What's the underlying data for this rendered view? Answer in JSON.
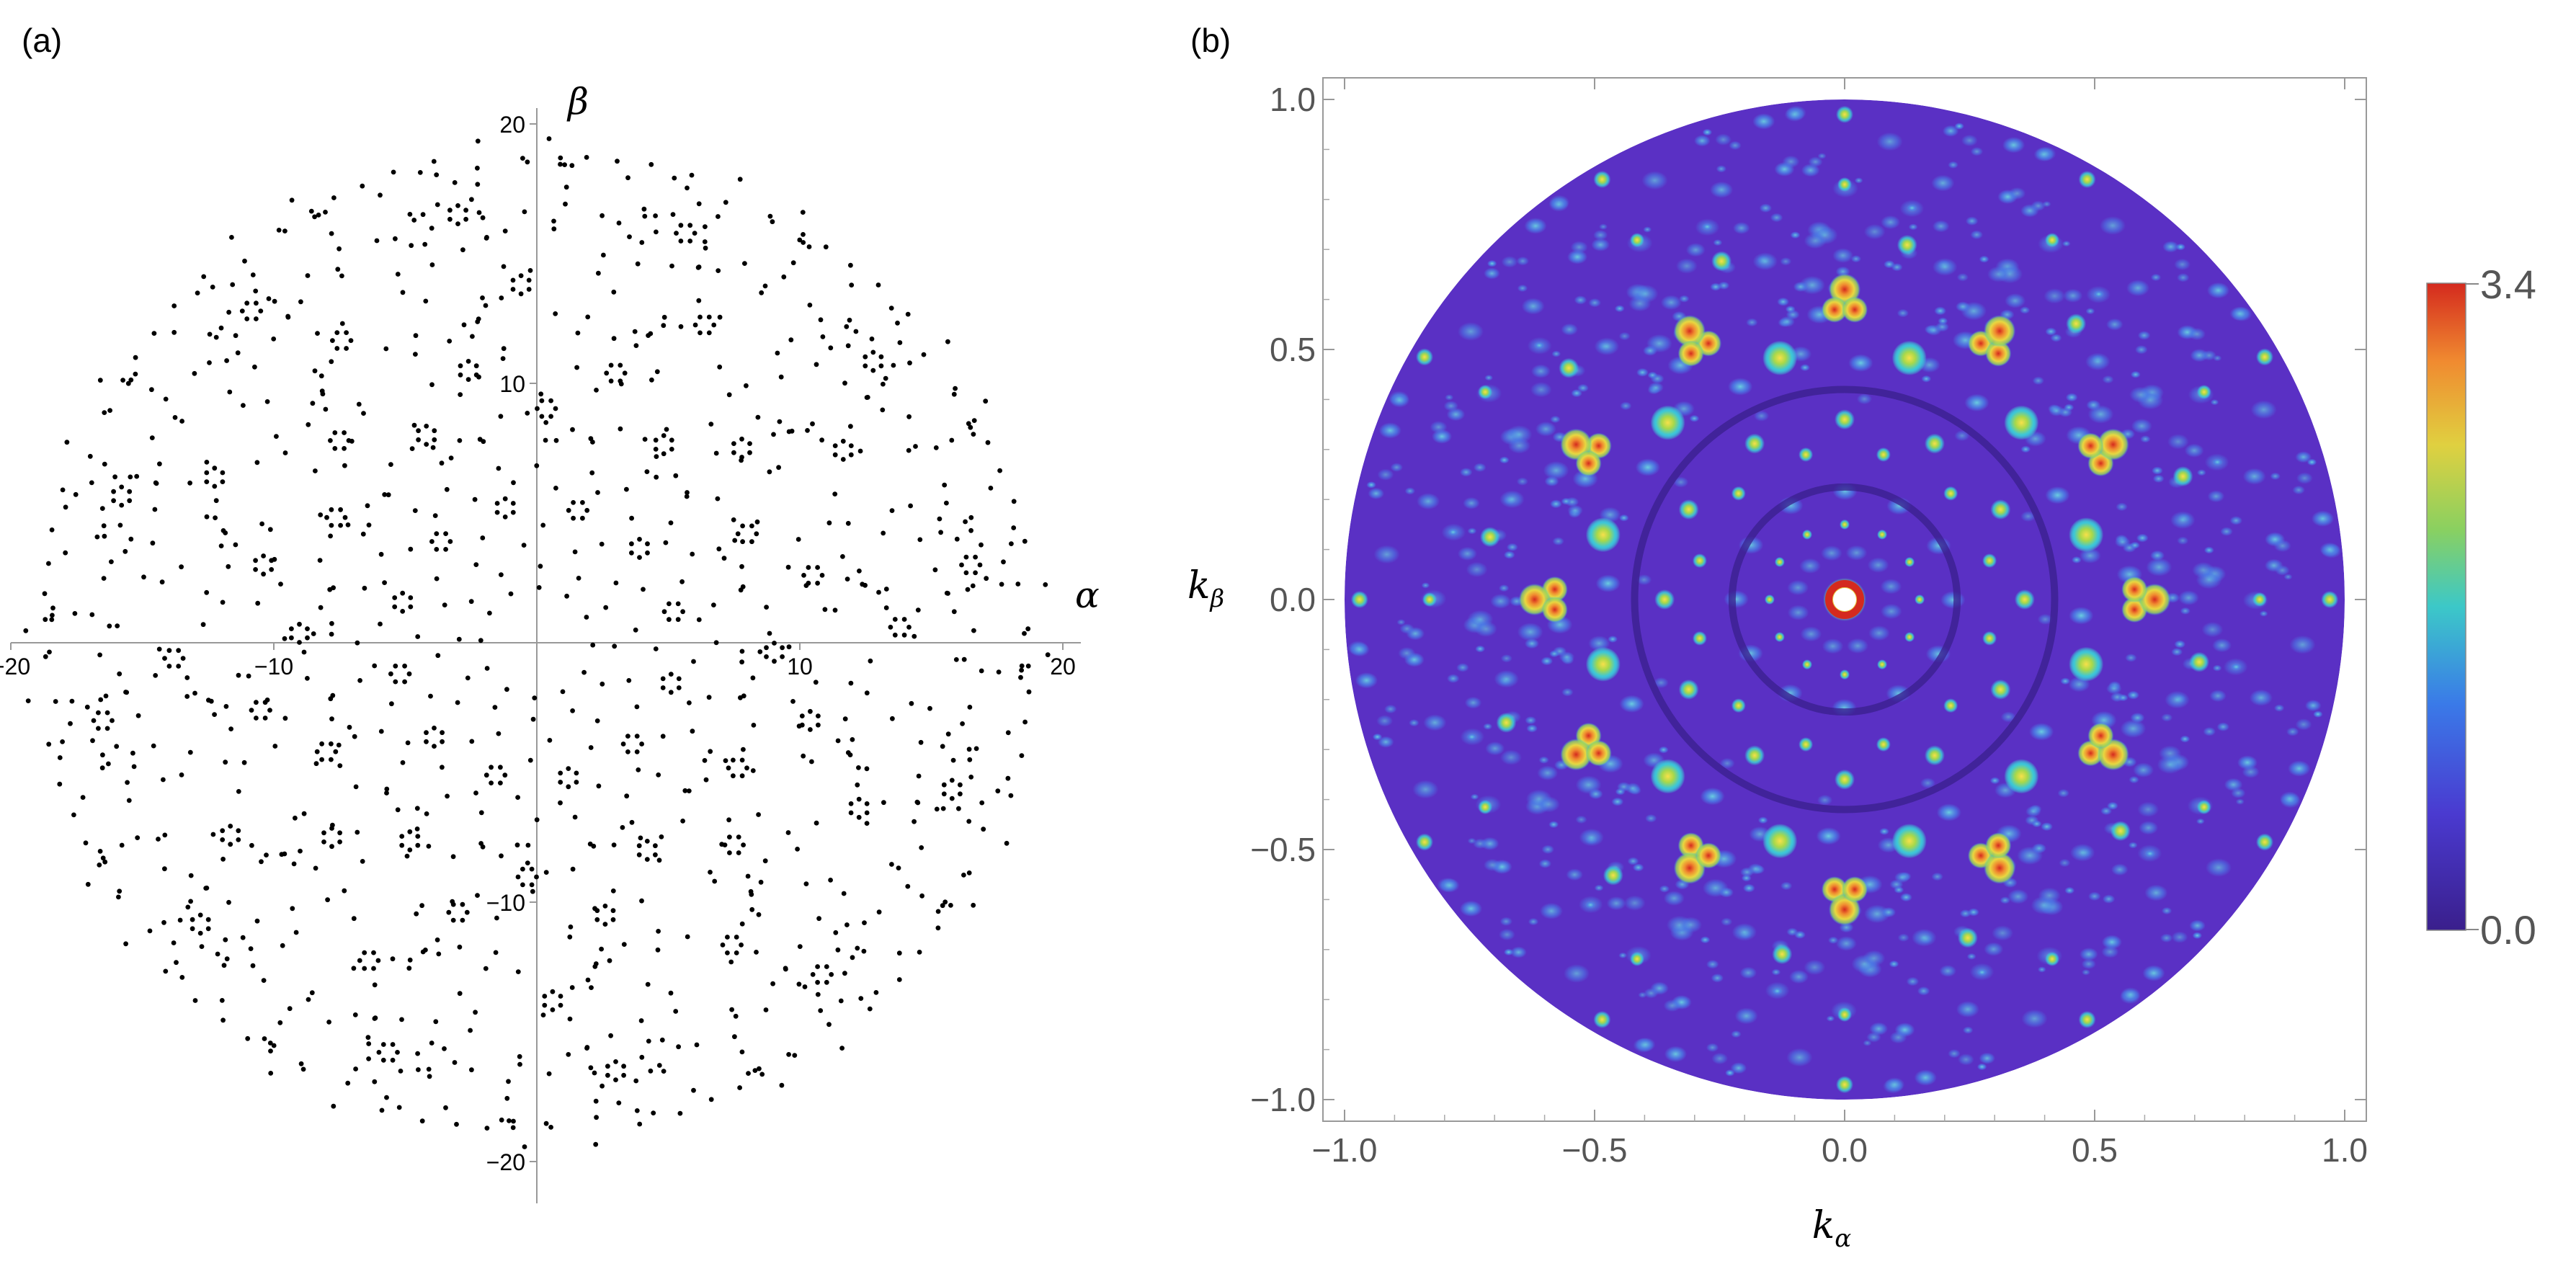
{
  "panel_a": {
    "label": "(a)",
    "x_axis_name": "α",
    "y_axis_name": "β",
    "x_tick_labels": [
      "−20",
      "−10",
      "10",
      "20"
    ],
    "y_tick_labels": [
      "20",
      "10",
      "−10",
      "−20"
    ]
  },
  "panel_b": {
    "label": "(b)",
    "x_axis_name": "k",
    "x_axis_sub": "α",
    "y_axis_name": "k",
    "y_axis_sub": "β",
    "x_tick_labels": [
      "−1.0",
      "−0.5",
      "0.0",
      "0.5",
      "1.0"
    ],
    "y_tick_labels": [
      "1.0",
      "0.5",
      "0.0",
      "−0.5",
      "−1.0"
    ],
    "colorbar_max_label": "3.4",
    "colorbar_min_label": "0.0"
  },
  "colors": {
    "background_purple": "#5a2fc0",
    "dark_purple": "#3a1f8c",
    "cyan": "#3cc8d8",
    "green_yellow": "#b8d84a",
    "orange": "#f08a30",
    "red": "#d42a1e",
    "axis_gray": "#888888"
  },
  "chart_data": [
    {
      "type": "scatter",
      "panel": "a",
      "description_free": true,
      "xlabel": "α",
      "ylabel": "β",
      "xlim": [
        -20,
        20
      ],
      "ylim": [
        -21,
        20
      ],
      "symmetry": "12-fold rotational (quasicrystal point set)",
      "point_radius_extent": 19.5,
      "series": [
        {
          "values": []
        }
      ]
    },
    {
      "type": "heatmap",
      "panel": "b",
      "xlabel": "kα",
      "ylabel": "kβ",
      "xlim": [
        -1.0,
        1.0
      ],
      "ylim": [
        -1.0,
        1.0
      ],
      "domain": "disk of radius 1.0",
      "symmetry": "12-fold rotational",
      "colorbar": {
        "min": 0.0,
        "max": 3.4,
        "colormap": "purple-blue-cyan-green-yellow-orange-red"
      },
      "peaks": [
        {
          "kx": 0.0,
          "ky": 0.0,
          "value": 3.4
        },
        {
          "kx": 0.0,
          "ky": 0.62,
          "value": 3.0
        },
        {
          "kx": -0.28,
          "ky": 0.55,
          "value": 2.6
        },
        {
          "kx": 0.28,
          "ky": 0.55,
          "value": 2.6
        }
      ]
    }
  ]
}
